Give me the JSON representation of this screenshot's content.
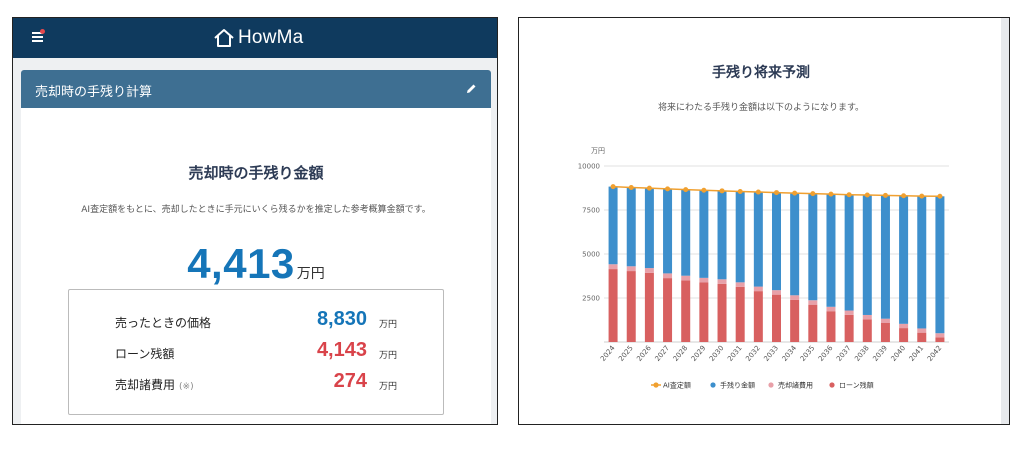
{
  "app": {
    "logo_text": "HowMa"
  },
  "calc_card": {
    "title": "売却時の手残り計算",
    "heading": "売却時の手残り金額",
    "description": "AI査定額をもとに、売却したときに手元にいくら残るかを推定した参考概算金額です。",
    "amount": "4,413",
    "amount_unit": "万円",
    "breakdown": [
      {
        "label": "売ったときの価格",
        "note": "",
        "value": "8,830",
        "unit": "万円",
        "color": "#1575b8"
      },
      {
        "label": "ローン残額",
        "note": "",
        "value": "4,143",
        "unit": "万円",
        "color": "#d9434a"
      },
      {
        "label": "売却諸費用",
        "note": "(※)",
        "value": "274",
        "unit": "万円",
        "color": "#d9434a"
      }
    ]
  },
  "forecast": {
    "title": "手残り将来予測",
    "description": "将来にわたる手残り金額は以下のようになります。"
  },
  "colors": {
    "ai": "#f0a030",
    "remain": "#3d8fcc",
    "cost": "#e8a0a8",
    "loan": "#d86060"
  },
  "chart_data": {
    "type": "bar",
    "stacked": true,
    "ylabel": "万円",
    "ylim": [
      0,
      10000
    ],
    "yticks": [
      2500,
      5000,
      7500,
      10000
    ],
    "grid": true,
    "legend_position": "bottom",
    "categories": [
      "2024",
      "2025",
      "2026",
      "2027",
      "2028",
      "2029",
      "2030",
      "2031",
      "2032",
      "2033",
      "2034",
      "2035",
      "2036",
      "2037",
      "2038",
      "2039",
      "2040",
      "2041",
      "2042"
    ],
    "series": [
      {
        "name": "AI査定額",
        "type": "line",
        "values": [
          8830,
          8780,
          8740,
          8700,
          8660,
          8620,
          8590,
          8550,
          8520,
          8490,
          8460,
          8430,
          8400,
          8370,
          8350,
          8330,
          8310,
          8290,
          8280
        ]
      },
      {
        "name": "手残り金額",
        "type": "bar",
        "values": [
          4413,
          4480,
          4540,
          4800,
          4890,
          4980,
          5020,
          5160,
          5370,
          5540,
          5800,
          6060,
          6400,
          6580,
          6810,
          7010,
          7280,
          7520,
          7780
        ]
      },
      {
        "name": "売却諸費用",
        "type": "bar",
        "values": [
          274,
          272,
          270,
          268,
          266,
          264,
          262,
          260,
          258,
          256,
          254,
          252,
          250,
          248,
          246,
          244,
          242,
          240,
          238
        ]
      },
      {
        "name": "ローン残額",
        "type": "bar",
        "values": [
          4143,
          4030,
          3930,
          3630,
          3500,
          3380,
          3300,
          3130,
          2890,
          2690,
          2400,
          2120,
          1750,
          1540,
          1290,
          1080,
          790,
          530,
          260
        ]
      }
    ]
  }
}
